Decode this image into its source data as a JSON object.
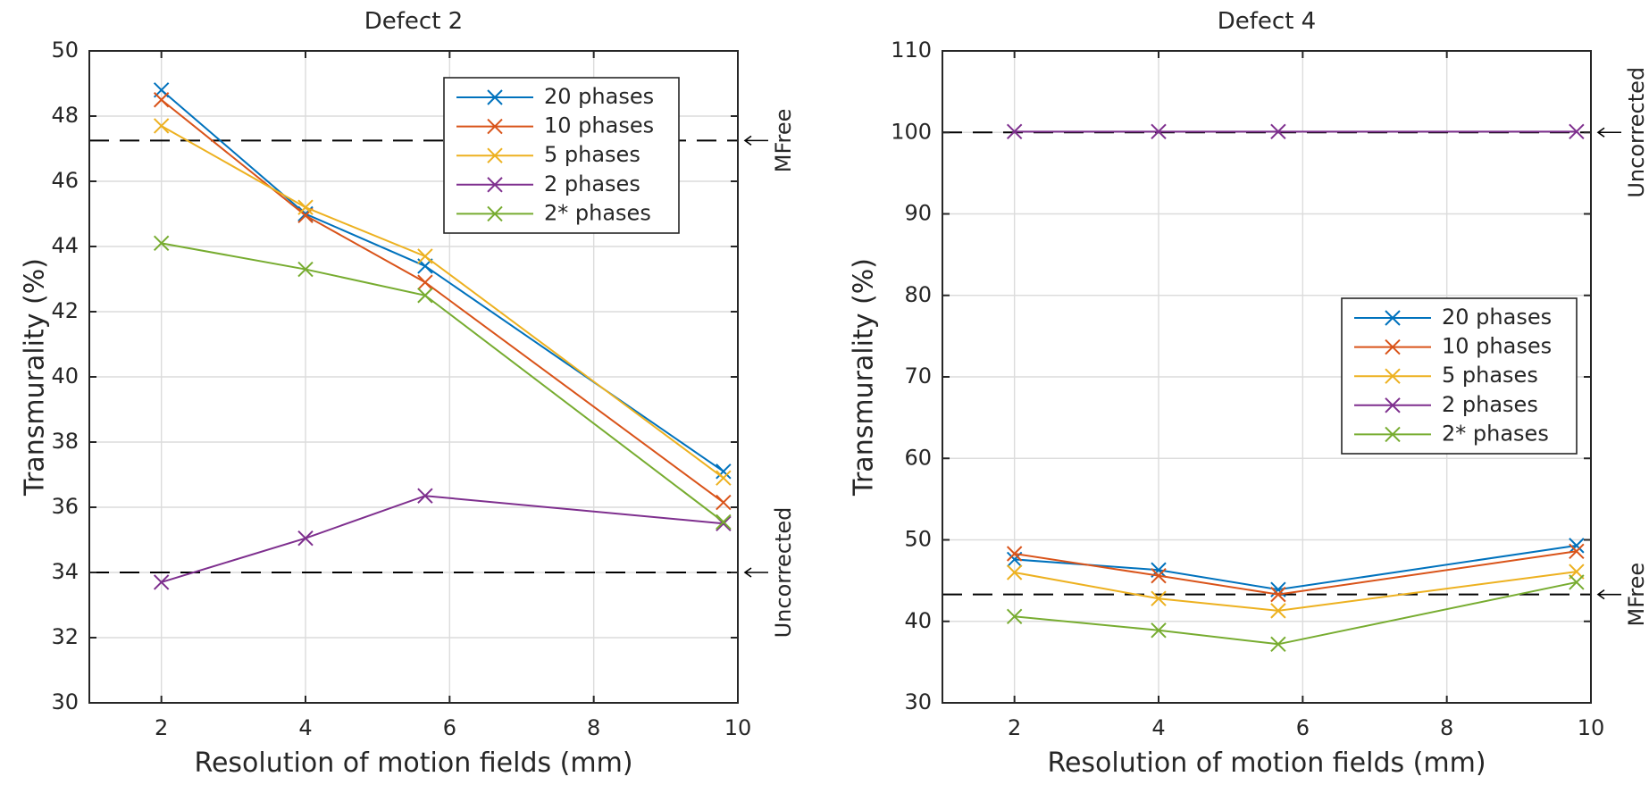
{
  "figure": {
    "name": "transmurality-vs-resolution"
  },
  "chart_data": [
    {
      "type": "line",
      "title": "Defect 2",
      "xlabel": "Resolution of motion fields (mm)",
      "ylabel": "Transmurality (%)",
      "xlim": [
        1,
        10
      ],
      "ylim": [
        30,
        50
      ],
      "xticks": [
        2,
        4,
        6,
        8,
        10
      ],
      "yticks": [
        30,
        32,
        34,
        36,
        38,
        40,
        42,
        44,
        46,
        48,
        50
      ],
      "grid": true,
      "legend_position": "top-right",
      "x": [
        2,
        4,
        5.66,
        9.8
      ],
      "series": [
        {
          "name": "20 phases",
          "color": "#0072BD",
          "values": [
            48.8,
            45.0,
            43.4,
            37.1
          ]
        },
        {
          "name": "10 phases",
          "color": "#D95319",
          "values": [
            48.5,
            44.95,
            42.9,
            36.15
          ]
        },
        {
          "name": "5 phases",
          "color": "#EDB120",
          "values": [
            47.7,
            45.2,
            43.7,
            36.9
          ]
        },
        {
          "name": "2 phases",
          "color": "#7E2F8E",
          "values": [
            33.7,
            35.05,
            36.35,
            35.5
          ]
        },
        {
          "name": "2* phases",
          "color": "#77AC30",
          "values": [
            44.1,
            43.3,
            42.5,
            35.55
          ]
        }
      ],
      "reference_lines": [
        {
          "label": "MFree",
          "value": 47.25
        },
        {
          "label": "Uncorrected",
          "value": 34.0
        }
      ]
    },
    {
      "type": "line",
      "title": "Defect 4",
      "xlabel": "Resolution of motion fields (mm)",
      "ylabel": "Transmurality (%)",
      "xlim": [
        1,
        10
      ],
      "ylim": [
        30,
        110
      ],
      "xticks": [
        2,
        4,
        6,
        8,
        10
      ],
      "yticks": [
        30,
        40,
        50,
        60,
        70,
        80,
        90,
        100,
        110
      ],
      "grid": true,
      "legend_position": "center-right",
      "x": [
        2,
        4,
        5.66,
        9.8
      ],
      "series": [
        {
          "name": "20 phases",
          "color": "#0072BD",
          "values": [
            47.6,
            46.3,
            43.9,
            49.3
          ]
        },
        {
          "name": "10 phases",
          "color": "#D95319",
          "values": [
            48.3,
            45.6,
            43.3,
            48.6
          ]
        },
        {
          "name": "5 phases",
          "color": "#EDB120",
          "values": [
            46.0,
            42.8,
            41.3,
            46.1
          ]
        },
        {
          "name": "2 phases",
          "color": "#7E2F8E",
          "values": [
            100.1,
            100.1,
            100.1,
            100.1
          ]
        },
        {
          "name": "2* phases",
          "color": "#77AC30",
          "values": [
            40.6,
            38.9,
            37.2,
            44.8
          ]
        }
      ],
      "reference_lines": [
        {
          "label": "Uncorrected",
          "value": 100.0
        },
        {
          "label": "MFree",
          "value": 43.3
        }
      ]
    }
  ]
}
